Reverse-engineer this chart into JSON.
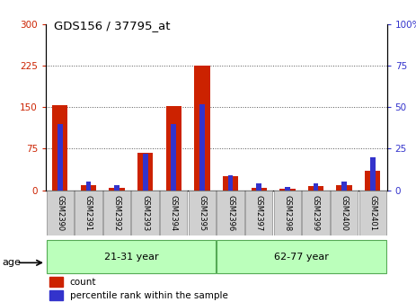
{
  "title": "GDS156 / 37795_at",
  "samples": [
    "GSM2390",
    "GSM2391",
    "GSM2392",
    "GSM2393",
    "GSM2394",
    "GSM2395",
    "GSM2396",
    "GSM2397",
    "GSM2398",
    "GSM2399",
    "GSM2400",
    "GSM2401"
  ],
  "count": [
    153,
    10,
    5,
    68,
    152,
    225,
    25,
    5,
    3,
    8,
    10,
    35
  ],
  "percentile": [
    40,
    5,
    3,
    22,
    40,
    52,
    9,
    4,
    2,
    4,
    5,
    20
  ],
  "red_color": "#cc2200",
  "blue_color": "#3333cc",
  "ylim_left": [
    0,
    300
  ],
  "ylim_right": [
    0,
    100
  ],
  "yticks_left": [
    0,
    75,
    150,
    225,
    300
  ],
  "yticks_right": [
    0,
    25,
    50,
    75,
    100
  ],
  "groups": [
    {
      "label": "21-31 year",
      "start": 0,
      "end": 5
    },
    {
      "label": "62-77 year",
      "start": 6,
      "end": 11
    }
  ],
  "group_bg_color": "#bbffbb",
  "age_label": "age",
  "legend_count": "count",
  "legend_percentile": "percentile rank within the sample",
  "red_bar_width": 0.55,
  "blue_bar_width": 0.18,
  "bg_color": "#ffffff",
  "label_bg": "#d0d0d0",
  "dotted_line_color": "#555555"
}
